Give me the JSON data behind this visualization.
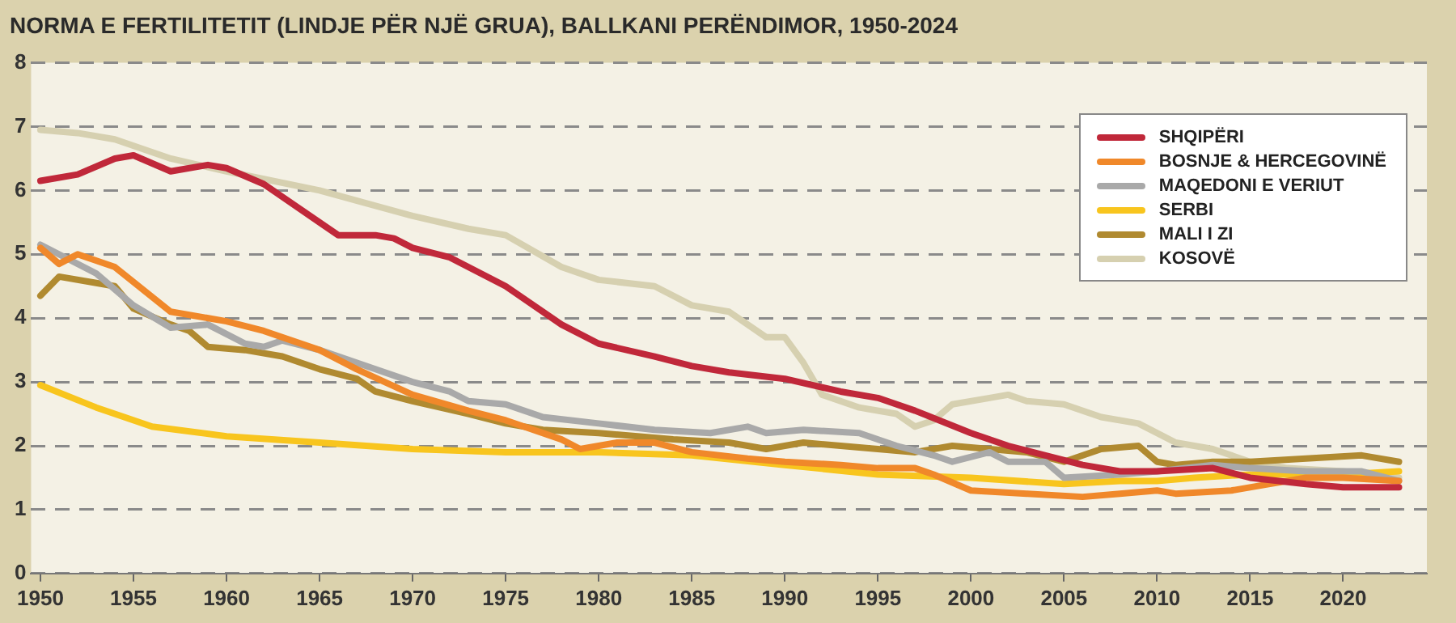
{
  "chart_data": {
    "type": "line",
    "title": "NORMA E FERTILITETIT (LINDJE PËR NJË GRUA), BALLKANI PERËNDIMOR, 1950-2024",
    "xlim": [
      1949.5,
      2024.5
    ],
    "xticks": [
      1950,
      1955,
      1960,
      1965,
      1970,
      1975,
      1980,
      1985,
      1990,
      1995,
      2000,
      2005,
      2010,
      2015,
      2020
    ],
    "ylim": [
      0,
      8
    ],
    "yticks": [
      0,
      1,
      2,
      3,
      4,
      5,
      6,
      7,
      8
    ],
    "grid": "y",
    "legend": "top right",
    "marker": "none",
    "line_style": "solid",
    "series": [
      {
        "name": "SHQIPËRI",
        "color": "#c0283a",
        "x": [
          1950,
          1952,
          1954,
          1955,
          1957,
          1959,
          1960,
          1962,
          1965,
          1966,
          1968,
          1969,
          1970,
          1972,
          1975,
          1978,
          1980,
          1983,
          1985,
          1987,
          1990,
          1993,
          1995,
          1997,
          2000,
          2002,
          2004,
          2006,
          2008,
          2010,
          2013,
          2015,
          2018,
          2020,
          2023
        ],
        "values": [
          6.15,
          6.25,
          6.5,
          6.55,
          6.3,
          6.4,
          6.35,
          6.1,
          5.5,
          5.3,
          5.3,
          5.25,
          5.1,
          4.95,
          4.5,
          3.9,
          3.6,
          3.4,
          3.25,
          3.15,
          3.05,
          2.85,
          2.75,
          2.55,
          2.2,
          2.0,
          1.85,
          1.7,
          1.6,
          1.6,
          1.65,
          1.5,
          1.4,
          1.35,
          1.35
        ]
      },
      {
        "name": "BOSNJE & HERCEGOVINË",
        "color": "#f0882a",
        "x": [
          1950,
          1951,
          1952,
          1954,
          1957,
          1960,
          1962,
          1965,
          1967,
          1970,
          1973,
          1975,
          1978,
          1979,
          1981,
          1983,
          1985,
          1988,
          1990,
          1993,
          1995,
          1997,
          1998,
          2000,
          2003,
          2006,
          2008,
          2010,
          2011,
          2014,
          2016,
          2018,
          2020,
          2023
        ],
        "values": [
          5.1,
          4.85,
          5.0,
          4.8,
          4.1,
          3.95,
          3.8,
          3.5,
          3.2,
          2.8,
          2.55,
          2.4,
          2.1,
          1.95,
          2.05,
          2.05,
          1.9,
          1.8,
          1.75,
          1.7,
          1.65,
          1.65,
          1.55,
          1.3,
          1.25,
          1.2,
          1.25,
          1.3,
          1.25,
          1.3,
          1.4,
          1.5,
          1.5,
          1.45
        ]
      },
      {
        "name": "MAQEDONI E VERIUT",
        "color": "#a9a9a9",
        "x": [
          1950,
          1953,
          1955,
          1957,
          1959,
          1961,
          1962,
          1963,
          1965,
          1968,
          1970,
          1972,
          1973,
          1975,
          1977,
          1980,
          1983,
          1986,
          1988,
          1989,
          1991,
          1994,
          1996,
          1998,
          1999,
          2001,
          2002,
          2004,
          2005,
          2008,
          2010,
          2013,
          2015,
          2018,
          2021,
          2023
        ],
        "values": [
          5.15,
          4.7,
          4.2,
          3.85,
          3.9,
          3.6,
          3.55,
          3.65,
          3.5,
          3.2,
          3.0,
          2.85,
          2.7,
          2.65,
          2.45,
          2.35,
          2.25,
          2.2,
          2.3,
          2.2,
          2.25,
          2.2,
          2.0,
          1.85,
          1.75,
          1.9,
          1.75,
          1.75,
          1.5,
          1.55,
          1.6,
          1.7,
          1.65,
          1.6,
          1.6,
          1.45
        ]
      },
      {
        "name": "SERBI",
        "color": "#f8c51e",
        "x": [
          1950,
          1953,
          1956,
          1960,
          1965,
          1970,
          1975,
          1980,
          1985,
          1990,
          1995,
          2000,
          2005,
          2008,
          2010,
          2012,
          2015,
          2020,
          2023
        ],
        "values": [
          2.95,
          2.6,
          2.3,
          2.15,
          2.05,
          1.95,
          1.9,
          1.9,
          1.85,
          1.7,
          1.55,
          1.5,
          1.4,
          1.45,
          1.45,
          1.5,
          1.55,
          1.55,
          1.6
        ]
      },
      {
        "name": "MALI I ZI",
        "color": "#b08a30",
        "x": [
          1950,
          1951,
          1953,
          1954,
          1955,
          1957,
          1958,
          1959,
          1961,
          1963,
          1965,
          1967,
          1968,
          1970,
          1973,
          1975,
          1977,
          1980,
          1984,
          1987,
          1989,
          1991,
          1993,
          1995,
          1997,
          1999,
          2001,
          2003,
          2005,
          2007,
          2009,
          2010,
          2011,
          2013,
          2015,
          2018,
          2021,
          2023
        ],
        "values": [
          4.35,
          4.65,
          4.55,
          4.5,
          4.15,
          3.9,
          3.8,
          3.55,
          3.5,
          3.4,
          3.2,
          3.05,
          2.85,
          2.7,
          2.5,
          2.35,
          2.25,
          2.2,
          2.1,
          2.05,
          1.95,
          2.05,
          2.0,
          1.95,
          1.9,
          2.0,
          1.95,
          1.9,
          1.75,
          1.95,
          2.0,
          1.75,
          1.7,
          1.75,
          1.75,
          1.8,
          1.85,
          1.75
        ]
      },
      {
        "name": "KOSOVË",
        "color": "#d6d0b0",
        "x": [
          1950,
          1952,
          1954,
          1957,
          1960,
          1965,
          1970,
          1973,
          1975,
          1978,
          1980,
          1983,
          1985,
          1987,
          1989,
          1990,
          1991,
          1992,
          1994,
          1996,
          1997,
          1998,
          1999,
          2001,
          2002,
          2003,
          2005,
          2007,
          2009,
          2011,
          2013,
          2015,
          2017,
          2020,
          2023
        ],
        "values": [
          6.95,
          6.9,
          6.8,
          6.5,
          6.3,
          6.0,
          5.6,
          5.4,
          5.3,
          4.8,
          4.6,
          4.5,
          4.2,
          4.1,
          3.7,
          3.7,
          3.3,
          2.8,
          2.6,
          2.5,
          2.3,
          2.4,
          2.65,
          2.75,
          2.8,
          2.7,
          2.65,
          2.45,
          2.35,
          2.05,
          1.95,
          1.75,
          1.65,
          1.6,
          1.5
        ]
      }
    ]
  }
}
